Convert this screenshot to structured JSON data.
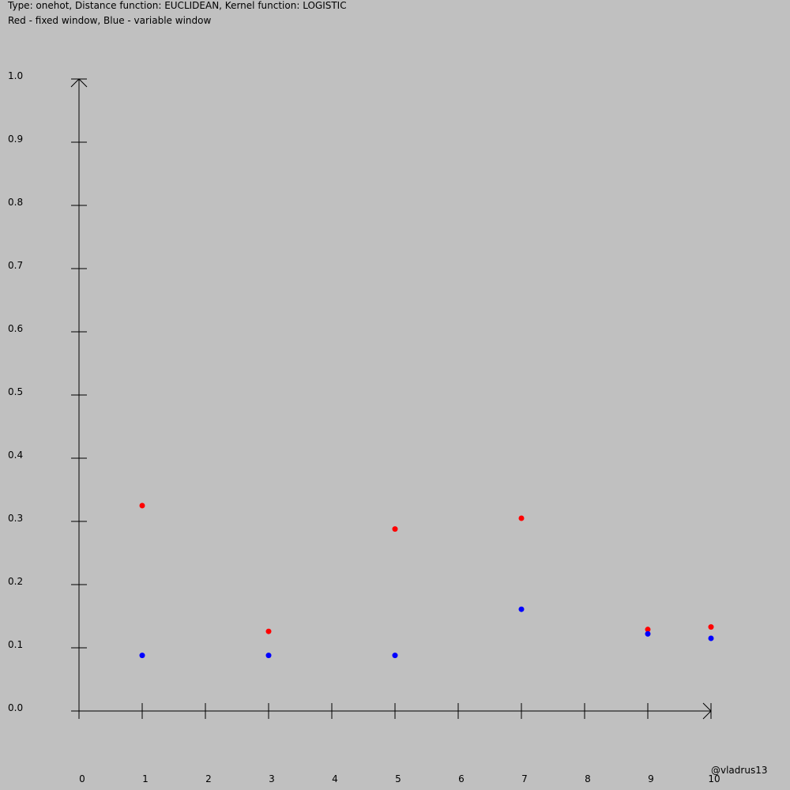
{
  "header": {
    "line1": "Type: onehot, Distance function: EUCLIDEAN, Kernel function: LOGISTIC",
    "line2": "Red - fixed window, Blue - variable window"
  },
  "watermark": "@vladrus13",
  "chart_data": {
    "type": "scatter",
    "title": "",
    "xlabel": "",
    "ylabel": "",
    "xlim": [
      0,
      10
    ],
    "ylim": [
      0,
      1
    ],
    "x_ticks": [
      "0",
      "1",
      "2",
      "3",
      "4",
      "5",
      "6",
      "7",
      "8",
      "9",
      "10"
    ],
    "y_ticks": [
      "0.0",
      "0.1",
      "0.2",
      "0.3",
      "0.4",
      "0.5",
      "0.6",
      "0.7",
      "0.8",
      "0.9",
      "1.0"
    ],
    "grid": false,
    "legend": "none",
    "series": [
      {
        "color": "#ff0000",
        "points": [
          {
            "x": 1,
            "y": 0.325
          },
          {
            "x": 3,
            "y": 0.126
          },
          {
            "x": 5,
            "y": 0.288
          },
          {
            "x": 7,
            "y": 0.305
          },
          {
            "x": 9,
            "y": 0.129
          },
          {
            "x": 10,
            "y": 0.133
          }
        ]
      },
      {
        "color": "#0000ff",
        "points": [
          {
            "x": 1,
            "y": 0.088
          },
          {
            "x": 3,
            "y": 0.088
          },
          {
            "x": 5,
            "y": 0.088
          },
          {
            "x": 7,
            "y": 0.161
          },
          {
            "x": 9,
            "y": 0.122
          },
          {
            "x": 10,
            "y": 0.115
          }
        ]
      }
    ]
  }
}
